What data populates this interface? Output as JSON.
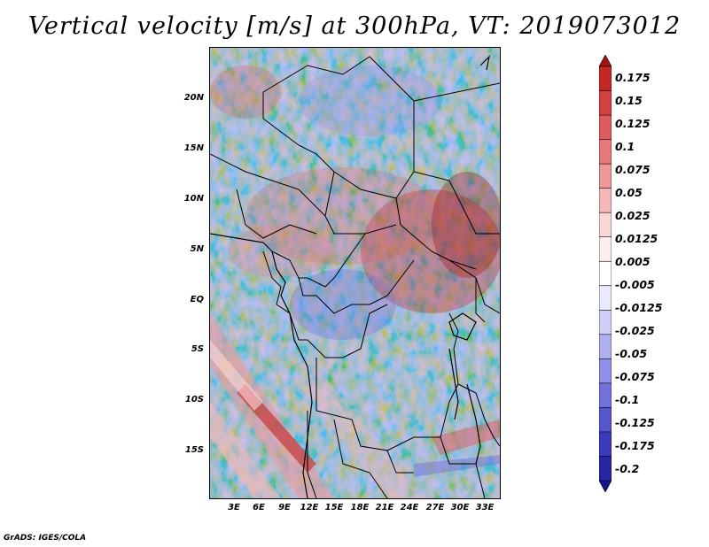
{
  "title": "Vertical velocity [m/s] at 300hPa, VT: 2019073012",
  "y_axis": {
    "ticks": [
      "20N",
      "15N",
      "10N",
      "5N",
      "EQ",
      "5S",
      "10S",
      "15S"
    ]
  },
  "x_axis": {
    "ticks": [
      "3E",
      "6E",
      "9E",
      "12E",
      "15E",
      "18E",
      "21E",
      "24E",
      "27E",
      "30E",
      "33E"
    ]
  },
  "colorbar": {
    "labels": [
      "0.175",
      "0.15",
      "0.125",
      "0.1",
      "0.075",
      "0.05",
      "0.025",
      "0.0125",
      "0.005",
      "-0.005",
      "-0.0125",
      "-0.025",
      "-0.05",
      "-0.075",
      "-0.1",
      "-0.125",
      "-0.175",
      "-0.2"
    ],
    "colors": [
      "#a01414",
      "#c42626",
      "#d24040",
      "#de5c5c",
      "#e57878",
      "#ee9898",
      "#f5b8b8",
      "#fad8d8",
      "#fdeeee",
      "#ffffff",
      "#eaeaff",
      "#cfcff8",
      "#b0b0f0",
      "#9090e8",
      "#7272dc",
      "#5656cc",
      "#3a3abc",
      "#2626a4",
      "#14148c"
    ]
  },
  "credit": "GrADS: IGES/COLA"
}
